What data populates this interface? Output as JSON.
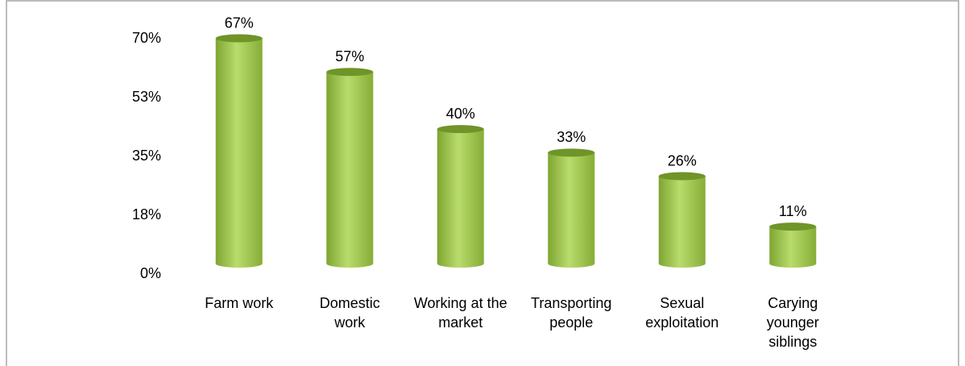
{
  "chart_data": {
    "type": "bar",
    "categories": [
      "Farm work",
      "Domestic work",
      "Working at the market",
      "Transporting people",
      "Sexual exploitation",
      "Carying younger siblings"
    ],
    "values": [
      67,
      57,
      40,
      33,
      26,
      11
    ],
    "value_labels": [
      "67%",
      "57%",
      "40%",
      "33%",
      "26%",
      "11%"
    ],
    "color": "#9dc447",
    "ylim": [
      0,
      70
    ],
    "yticks": [
      {
        "value": 0,
        "label": "0%"
      },
      {
        "value": 17.5,
        "label": "18%"
      },
      {
        "value": 35,
        "label": "35%"
      },
      {
        "value": 52.5,
        "label": "53%"
      },
      {
        "value": 70,
        "label": "70%"
      }
    ]
  }
}
